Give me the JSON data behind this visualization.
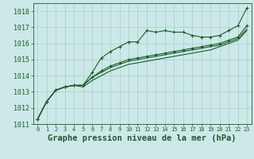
{
  "title": "Graphe pression niveau de la mer (hPa)",
  "background_color": "#cce8e8",
  "grid_color": "#aacece",
  "line_color": "#1a5c2a",
  "spine_color": "#1a5c2a",
  "xlim": [
    -0.5,
    23.5
  ],
  "ylim": [
    1011,
    1018.5
  ],
  "yticks": [
    1011,
    1012,
    1013,
    1014,
    1015,
    1016,
    1017,
    1018
  ],
  "xticks": [
    0,
    1,
    2,
    3,
    4,
    5,
    6,
    7,
    8,
    9,
    10,
    11,
    12,
    13,
    14,
    15,
    16,
    17,
    18,
    19,
    20,
    21,
    22,
    23
  ],
  "series": [
    [
      1011.3,
      1012.4,
      1013.1,
      1013.3,
      1013.4,
      1013.4,
      1014.2,
      1015.1,
      1015.5,
      1015.8,
      1016.1,
      1016.1,
      1016.8,
      1016.7,
      1016.8,
      1016.7,
      1016.7,
      1016.5,
      1016.4,
      1016.4,
      1016.5,
      1016.8,
      1017.1,
      1018.2
    ],
    [
      1011.3,
      1012.4,
      1013.1,
      1013.3,
      1013.4,
      1013.4,
      1013.9,
      1014.3,
      1014.6,
      1014.8,
      1015.0,
      1015.1,
      1015.2,
      1015.3,
      1015.4,
      1015.5,
      1015.6,
      1015.7,
      1015.8,
      1015.9,
      1016.0,
      1016.2,
      1016.4,
      1017.1
    ],
    [
      1011.3,
      1012.4,
      1013.1,
      1013.3,
      1013.4,
      1013.4,
      1013.9,
      1014.2,
      1014.5,
      1014.7,
      1014.9,
      1015.0,
      1015.1,
      1015.2,
      1015.3,
      1015.4,
      1015.5,
      1015.6,
      1015.7,
      1015.8,
      1015.9,
      1016.1,
      1016.3,
      1016.9
    ],
    [
      1011.3,
      1012.4,
      1013.1,
      1013.3,
      1013.4,
      1013.3,
      1013.7,
      1014.0,
      1014.3,
      1014.5,
      1014.7,
      1014.8,
      1014.9,
      1015.0,
      1015.1,
      1015.2,
      1015.3,
      1015.4,
      1015.5,
      1015.6,
      1015.8,
      1016.0,
      1016.2,
      1016.8
    ]
  ],
  "marker_series": [
    0,
    1
  ],
  "marker": "+",
  "marker_size": 3,
  "lw_marker": 0.8,
  "lw_plain": 0.8,
  "title_fontsize": 7.5,
  "ytick_fontsize": 6,
  "xtick_fontsize": 5
}
